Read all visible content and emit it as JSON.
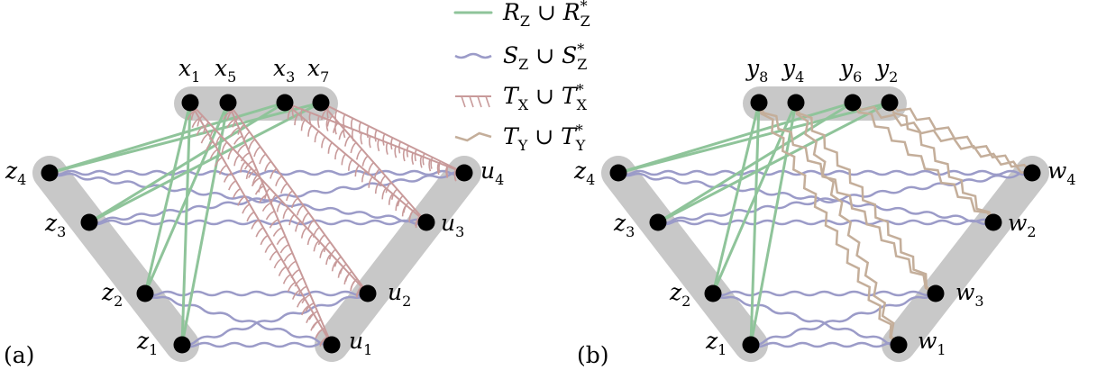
{
  "figure": {
    "panel_a": "(a)",
    "panel_b": "(b)"
  },
  "legend": [
    {
      "base": "R",
      "sub": "Z",
      "union": " ∪ ",
      "base2": "R",
      "sup2": "*",
      "sub2": "Z",
      "color": "#8fc49a",
      "style": "straight"
    },
    {
      "base": "S",
      "sub": "Z",
      "union": " ∪ ",
      "base2": "S",
      "sup2": "*",
      "sub2": "Z",
      "color": "#9b9bc8",
      "style": "wavy"
    },
    {
      "base": "T",
      "sub": "X",
      "union": " ∪ ",
      "base2": "T",
      "sup2": "*",
      "sub2": "X",
      "color": "#c89a9a",
      "style": "spiky"
    },
    {
      "base": "T",
      "sub": "Y",
      "union": " ∪ ",
      "base2": "T",
      "sup2": "*",
      "sub2": "Y",
      "color": "#c4ae9a",
      "style": "zigzag"
    }
  ],
  "colors": {
    "group_fill": "#c8c8c8",
    "node": "#000000",
    "R": "#8fc49a",
    "S": "#9b9bc8",
    "TX": "#c89a9a",
    "TY": "#c4ae9a"
  },
  "panel_a": {
    "top": [
      {
        "base": "x",
        "sub": "1"
      },
      {
        "base": "x",
        "sub": "5"
      },
      {
        "base": "x",
        "sub": "3"
      },
      {
        "base": "x",
        "sub": "7"
      }
    ],
    "left": [
      {
        "base": "z",
        "sub": "4"
      },
      {
        "base": "z",
        "sub": "3"
      },
      {
        "base": "z",
        "sub": "2"
      },
      {
        "base": "z",
        "sub": "1"
      }
    ],
    "right": [
      {
        "base": "u",
        "sub": "4"
      },
      {
        "base": "u",
        "sub": "3"
      },
      {
        "base": "u",
        "sub": "2"
      },
      {
        "base": "u",
        "sub": "1"
      }
    ]
  },
  "panel_b": {
    "top": [
      {
        "base": "y",
        "sub": "8"
      },
      {
        "base": "y",
        "sub": "4"
      },
      {
        "base": "y",
        "sub": "6"
      },
      {
        "base": "y",
        "sub": "2"
      }
    ],
    "left": [
      {
        "base": "z",
        "sub": "4"
      },
      {
        "base": "z",
        "sub": "3"
      },
      {
        "base": "z",
        "sub": "2"
      },
      {
        "base": "z",
        "sub": "1"
      }
    ],
    "right": [
      {
        "base": "w",
        "sub": "4"
      },
      {
        "base": "w",
        "sub": "2"
      },
      {
        "base": "w",
        "sub": "3"
      },
      {
        "base": "w",
        "sub": "1"
      }
    ]
  }
}
